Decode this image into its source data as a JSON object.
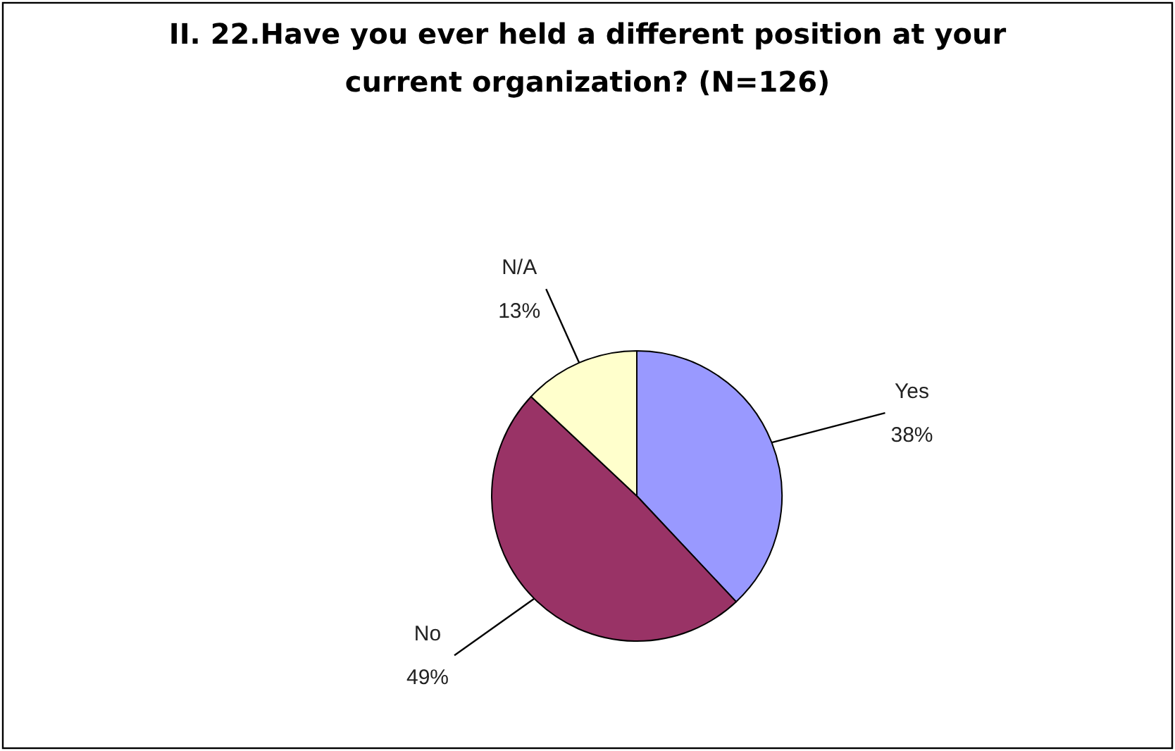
{
  "chart_data": {
    "type": "pie",
    "title": "II. 22.Have you ever held a different position at your current organization? (N=126)",
    "categories": [
      "Yes",
      "No",
      "N/A"
    ],
    "values": [
      38,
      49,
      13
    ],
    "colors": [
      "#9999ff",
      "#993366",
      "#ffffcc"
    ],
    "value_labels": [
      "38%",
      "49%",
      "13%"
    ]
  }
}
